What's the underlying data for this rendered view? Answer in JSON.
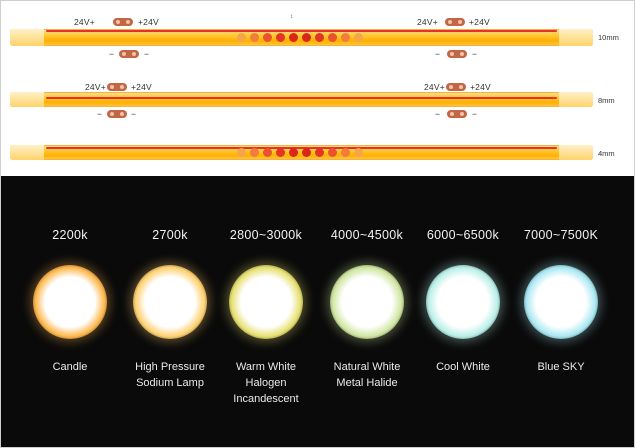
{
  "strips": [
    {
      "label": "10mm",
      "top_left": "24V+",
      "top_left2": "+24V",
      "top_right": "24V+",
      "top_right2": "+24V",
      "bottom_left": "−",
      "bottom_left2": "−",
      "bottom_right": "−",
      "bottom_right2": "−",
      "center_mark": "↕"
    },
    {
      "label": "8mm",
      "top_left": "24V+",
      "top_left2": "+24V",
      "top_right": "24V+",
      "top_right2": "+24V",
      "bottom_left": "−",
      "bottom_left2": "−",
      "bottom_right": "−",
      "bottom_right2": "−"
    },
    {
      "label": "4mm"
    }
  ],
  "color_temperatures": [
    {
      "kelvin": "2200k",
      "name": "Candle",
      "color": "#ffb84d"
    },
    {
      "kelvin": "2700k",
      "name": "High Pressure\nSodium Lamp",
      "color": "#ffd070"
    },
    {
      "kelvin": "2800~3000k",
      "name": "Warm White\nHalogen\nIncandescent",
      "color": "#e6e070"
    },
    {
      "kelvin": "4000~4500k",
      "name": "Natural White\nMetal Halide",
      "color": "#cfe6a0"
    },
    {
      "kelvin": "6000~6500k",
      "name": "Cool White",
      "color": "#b8efe8"
    },
    {
      "kelvin": "7000~7500K",
      "name": "Blue SKY",
      "color": "#a8e8f2"
    }
  ]
}
